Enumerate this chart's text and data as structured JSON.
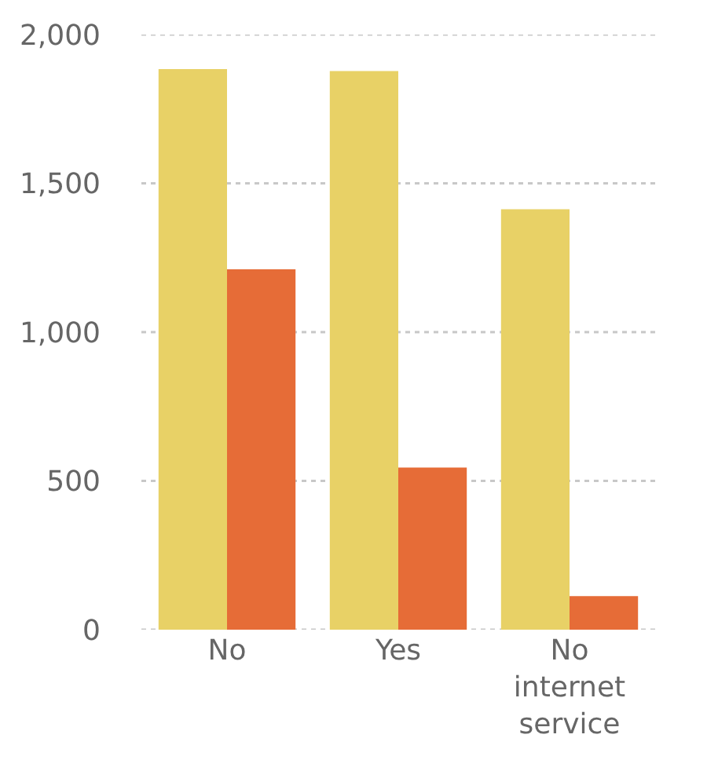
{
  "chart_data": {
    "type": "bar",
    "categories": [
      "No",
      "Yes",
      "No internet service"
    ],
    "series": [
      {
        "color": "#e8d166",
        "values": [
          1884,
          1877,
          1413
        ]
      },
      {
        "color": "#e66c37",
        "values": [
          1211,
          545,
          113
        ]
      }
    ],
    "ylim": [
      0,
      2000
    ],
    "yticks": [
      {
        "value": 0,
        "label": "0"
      },
      {
        "value": 500,
        "label": "500"
      },
      {
        "value": 1000,
        "label": "1,000"
      },
      {
        "value": 1500,
        "label": "1,500"
      },
      {
        "value": 2000,
        "label": "2,000"
      }
    ],
    "grid": "y"
  }
}
